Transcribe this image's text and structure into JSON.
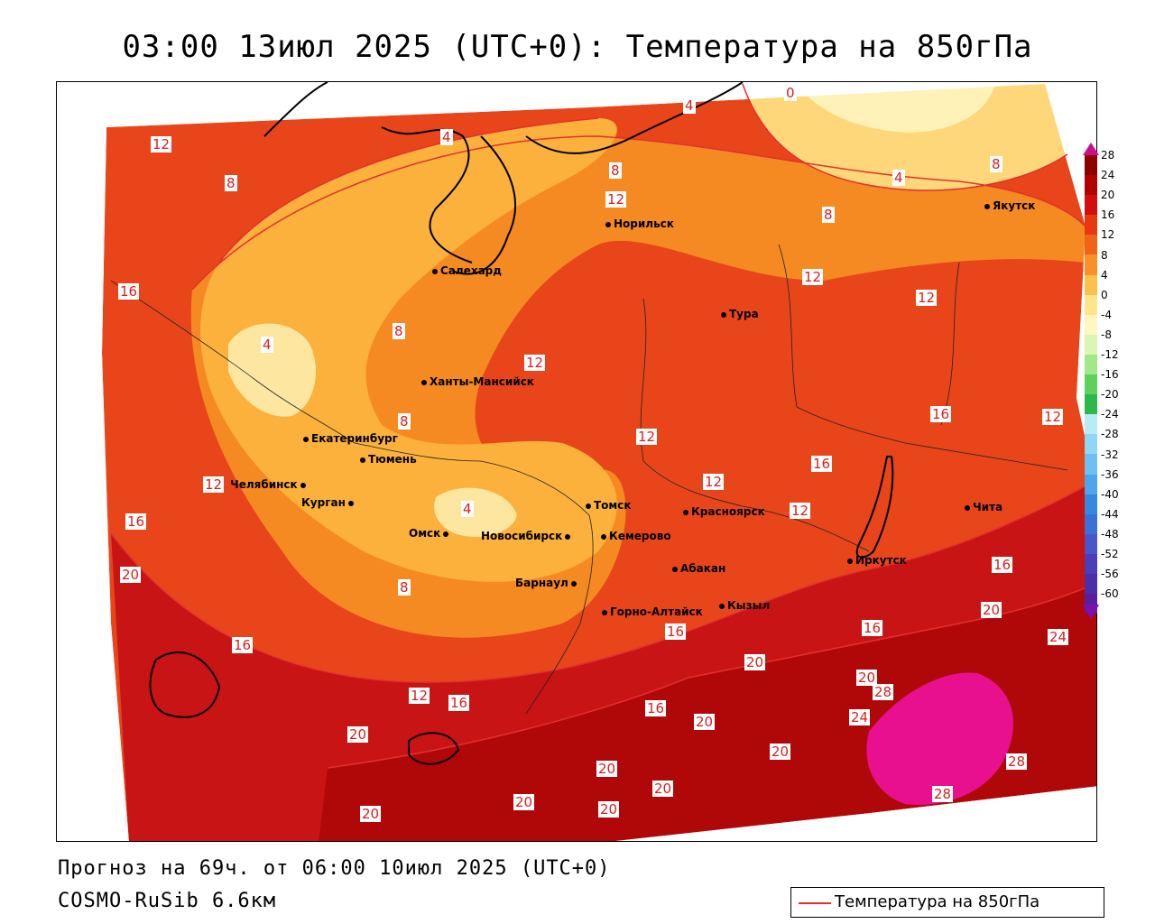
{
  "title": "03:00 13июл 2025 (UTC+0): Температура на 850гПа",
  "footer": {
    "forecast": "Прогноз на 69ч. от 06:00 10июл 2025 (UTC+0)",
    "model": "COSMO-RuSib 6.6км"
  },
  "legend": {
    "label": "Температура на 850гПа",
    "line_color": "#e23030"
  },
  "colorbar": {
    "ticks": [
      "28",
      "24",
      "20",
      "16",
      "12",
      "8",
      "4",
      "0",
      "-4",
      "-8",
      "-12",
      "-16",
      "-20",
      "-24",
      "-28",
      "-32",
      "-36",
      "-40",
      "-44",
      "-48",
      "-52",
      "-56",
      "-60"
    ],
    "colors": [
      "#8b0000",
      "#b50000",
      "#d40e0e",
      "#e8380f",
      "#f2631a",
      "#f79128",
      "#fcc14a",
      "#fde68a",
      "#fef7c0",
      "#d9f7b0",
      "#a0e88a",
      "#5cd15c",
      "#2fb84a",
      "#b8ecf5",
      "#8fd7f5",
      "#6fc0f0",
      "#4da6ea",
      "#3388e0",
      "#3c6fd8",
      "#4a56c8",
      "#4a3fb8",
      "#4b2ea8",
      "#5a1fa0"
    ],
    "top_color": "#c8108a",
    "bottom_color": "#7a10b0"
  },
  "cities": [
    {
      "name": "Якутск"
    },
    {
      "name": "Норильск"
    },
    {
      "name": "Салехард"
    },
    {
      "name": "Тура"
    },
    {
      "name": "Ханты-Мансийск"
    },
    {
      "name": "Екатеринбург"
    },
    {
      "name": "Тюмень"
    },
    {
      "name": "Челябинск"
    },
    {
      "name": "Курган"
    },
    {
      "name": "Омск"
    },
    {
      "name": "Новосибирск"
    },
    {
      "name": "Томск"
    },
    {
      "name": "Кемерово"
    },
    {
      "name": "Красноярск"
    },
    {
      "name": "Барнаул"
    },
    {
      "name": "Абакан"
    },
    {
      "name": "Горно-Алтайск"
    },
    {
      "name": "Кызыл"
    },
    {
      "name": "Иркутск"
    },
    {
      "name": "Чита"
    }
  ],
  "contour_labels": [
    "12",
    "8",
    "4",
    "4",
    "8",
    "0",
    "12",
    "4",
    "8",
    "16",
    "12",
    "8",
    "8",
    "12",
    "12",
    "4",
    "12",
    "8",
    "12",
    "16",
    "12",
    "16",
    "12",
    "16",
    "4",
    "8",
    "12",
    "16",
    "16",
    "20",
    "20",
    "16",
    "12",
    "16",
    "16",
    "20",
    "16",
    "20",
    "24",
    "28",
    "24",
    "20",
    "20",
    "20",
    "28",
    "28",
    "20",
    "20",
    "20",
    "20",
    "20"
  ]
}
